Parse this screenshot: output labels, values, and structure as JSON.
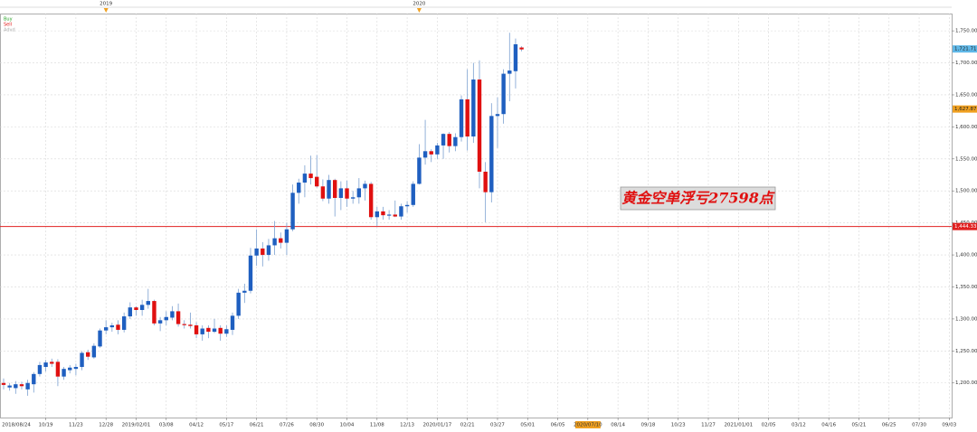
{
  "chart_data": {
    "type": "candlestick",
    "legend": [
      {
        "label": "Buy",
        "color": "#22a022"
      },
      {
        "label": "Sell",
        "color": "#e01010"
      },
      {
        "label": "Advd",
        "color": "#aaaaaa"
      }
    ],
    "up_color": "#1f5fc0",
    "down_color": "#e01010",
    "grid": true,
    "x": [
      2,
      3,
      4,
      5,
      6,
      7,
      8,
      9,
      10,
      11,
      12,
      13,
      14,
      15,
      16,
      17,
      18,
      19,
      20,
      21,
      22,
      23,
      24,
      25,
      26,
      27,
      28,
      29,
      30,
      31,
      32,
      33,
      34,
      35,
      36,
      37,
      38,
      39,
      40,
      41,
      42,
      43,
      44,
      45,
      46,
      47,
      48,
      49,
      50,
      51,
      52,
      53,
      54,
      55,
      56,
      57,
      58,
      59,
      60,
      61,
      62,
      63,
      64,
      65,
      66,
      67,
      68,
      69,
      70,
      71,
      72,
      73,
      74,
      75,
      76,
      77,
      78,
      79,
      80,
      81,
      82,
      83,
      84,
      85,
      86,
      87,
      88
    ],
    "open": [
      1200,
      1193,
      1192,
      1198,
      1190,
      1198,
      1214,
      1225,
      1233,
      1233,
      1210,
      1220,
      1222,
      1225,
      1248,
      1240,
      1257,
      1282,
      1287,
      1291,
      1283,
      1304,
      1318,
      1314,
      1322,
      1328,
      1293,
      1298,
      1302,
      1312,
      1292,
      1291,
      1290,
      1276,
      1286,
      1280,
      1286,
      1277,
      1283,
      1305,
      1341,
      1344,
      1399,
      1410,
      1400,
      1415,
      1426,
      1419,
      1440,
      1497,
      1513,
      1527,
      1522,
      1507,
      1488,
      1517,
      1489,
      1504,
      1488,
      1490,
      1504,
      1511,
      1459,
      1468,
      1462,
      1463,
      1460,
      1476,
      1478,
      1511,
      1552,
      1562,
      1557,
      1571,
      1589,
      1570,
      1584,
      1643,
      1585,
      1674,
      1530,
      1498,
      1617,
      1620,
      1683,
      1687,
      1724
    ],
    "high": [
      1207,
      1200,
      1203,
      1202,
      1205,
      1217,
      1233,
      1236,
      1238,
      1237,
      1225,
      1228,
      1230,
      1250,
      1252,
      1262,
      1285,
      1298,
      1294,
      1298,
      1310,
      1326,
      1320,
      1330,
      1347,
      1330,
      1303,
      1312,
      1320,
      1324,
      1298,
      1310,
      1295,
      1290,
      1290,
      1300,
      1290,
      1290,
      1310,
      1347,
      1355,
      1411,
      1440,
      1420,
      1425,
      1453,
      1435,
      1450,
      1510,
      1519,
      1540,
      1555,
      1556,
      1518,
      1525,
      1519,
      1515,
      1516,
      1500,
      1520,
      1516,
      1514,
      1475,
      1475,
      1470,
      1485,
      1480,
      1484,
      1515,
      1573,
      1611,
      1565,
      1575,
      1590,
      1592,
      1590,
      1649,
      1690,
      1700,
      1704,
      1545,
      1637,
      1646,
      1690,
      1747,
      1738,
      1726
    ],
    "low": [
      1190,
      1188,
      1183,
      1190,
      1180,
      1185,
      1210,
      1218,
      1225,
      1195,
      1205,
      1215,
      1212,
      1220,
      1236,
      1238,
      1255,
      1276,
      1280,
      1276,
      1279,
      1300,
      1305,
      1305,
      1316,
      1290,
      1281,
      1290,
      1298,
      1288,
      1285,
      1285,
      1270,
      1266,
      1270,
      1278,
      1266,
      1272,
      1275,
      1300,
      1325,
      1340,
      1383,
      1382,
      1391,
      1400,
      1410,
      1400,
      1437,
      1480,
      1490,
      1510,
      1505,
      1484,
      1480,
      1460,
      1470,
      1475,
      1480,
      1480,
      1485,
      1455,
      1445,
      1455,
      1455,
      1459,
      1455,
      1466,
      1475,
      1510,
      1541,
      1545,
      1550,
      1550,
      1560,
      1562,
      1577,
      1563,
      1575,
      1504,
      1451,
      1482,
      1567,
      1605,
      1640,
      1660,
      1718
    ],
    "close": [
      1197,
      1196,
      1198,
      1195,
      1200,
      1214,
      1228,
      1232,
      1230,
      1210,
      1222,
      1224,
      1225,
      1247,
      1241,
      1258,
      1282,
      1287,
      1290,
      1283,
      1304,
      1318,
      1314,
      1322,
      1328,
      1293,
      1298,
      1303,
      1312,
      1292,
      1291,
      1289,
      1276,
      1285,
      1280,
      1285,
      1277,
      1284,
      1305,
      1341,
      1344,
      1399,
      1410,
      1400,
      1415,
      1426,
      1419,
      1440,
      1497,
      1513,
      1527,
      1520,
      1507,
      1488,
      1517,
      1489,
      1504,
      1488,
      1490,
      1504,
      1511,
      1459,
      1468,
      1462,
      1463,
      1460,
      1476,
      1478,
      1511,
      1552,
      1562,
      1557,
      1571,
      1589,
      1570,
      1584,
      1643,
      1585,
      1674,
      1530,
      1498,
      1617,
      1620,
      1683,
      1688,
      1729,
      1721
    ],
    "xlim": [
      1.4,
      159.4
    ],
    "xticks": [
      {
        "value": 1,
        "label": "2018/08/24"
      },
      {
        "value": 9,
        "label": "10/19"
      },
      {
        "value": 14,
        "label": "11/23"
      },
      {
        "value": 19,
        "label": "12/28"
      },
      {
        "value": 24,
        "label": "2019/02/01"
      },
      {
        "value": 29,
        "label": "03/08"
      },
      {
        "value": 34,
        "label": "04/12"
      },
      {
        "value": 39,
        "label": "05/17"
      },
      {
        "value": 44,
        "label": "06/21"
      },
      {
        "value": 49,
        "label": "07/26"
      },
      {
        "value": 54,
        "label": "08/30"
      },
      {
        "value": 59,
        "label": "10/04"
      },
      {
        "value": 64,
        "label": "11/08"
      },
      {
        "value": 69,
        "label": "12/13"
      },
      {
        "value": 74,
        "label": "2020/01/17"
      },
      {
        "value": 79,
        "label": "02/21"
      },
      {
        "value": 84,
        "label": "03/27"
      },
      {
        "value": 89,
        "label": "05/01"
      },
      {
        "value": 94,
        "label": "06/05"
      },
      {
        "value": 99,
        "label": "2020/07/10",
        "highlight": "#f0a020"
      },
      {
        "value": 104,
        "label": "08/14"
      },
      {
        "value": 109,
        "label": "09/18"
      },
      {
        "value": 114,
        "label": "10/23"
      },
      {
        "value": 119,
        "label": "11/27"
      },
      {
        "value": 124,
        "label": "2021/01/01"
      },
      {
        "value": 129,
        "label": "02/05"
      },
      {
        "value": 134,
        "label": "03/12"
      },
      {
        "value": 139,
        "label": "04/16"
      },
      {
        "value": 144,
        "label": "05/21"
      },
      {
        "value": 149,
        "label": "06/25"
      },
      {
        "value": 154,
        "label": "07/30"
      },
      {
        "value": 159,
        "label": "09/03"
      }
    ],
    "year_markers": [
      {
        "value": 19,
        "label": "2019"
      },
      {
        "value": 71,
        "label": "2020"
      }
    ],
    "ylim": [
      1146,
      1777
    ],
    "yticks": [
      {
        "value": 1200,
        "label": "1,200.00"
      },
      {
        "value": 1250,
        "label": "1,250.00"
      },
      {
        "value": 1300,
        "label": "1,300.00"
      },
      {
        "value": 1350,
        "label": "1,350.00"
      },
      {
        "value": 1400,
        "label": "1,400.00"
      },
      {
        "value": 1450,
        "label": "1,450.00"
      },
      {
        "value": 1500,
        "label": "1,500.00"
      },
      {
        "value": 1550,
        "label": "1,550.00"
      },
      {
        "value": 1600,
        "label": "1,600.00"
      },
      {
        "value": 1650,
        "label": "1,650.00"
      },
      {
        "value": 1700,
        "label": "1,700.00"
      },
      {
        "value": 1750,
        "label": "1,750.00"
      }
    ],
    "price_markers": [
      {
        "value": 1721.71,
        "label": "1,721.71",
        "color": "#5fb8e8",
        "line": false
      },
      {
        "value": 1627.87,
        "label": "1,627.87",
        "color": "#f0a020",
        "line": false
      },
      {
        "value": 1444.33,
        "label": "1,444.33",
        "color": "#e02020",
        "line": true
      }
    ],
    "annotation": "黄金空单浮亏27598点"
  }
}
